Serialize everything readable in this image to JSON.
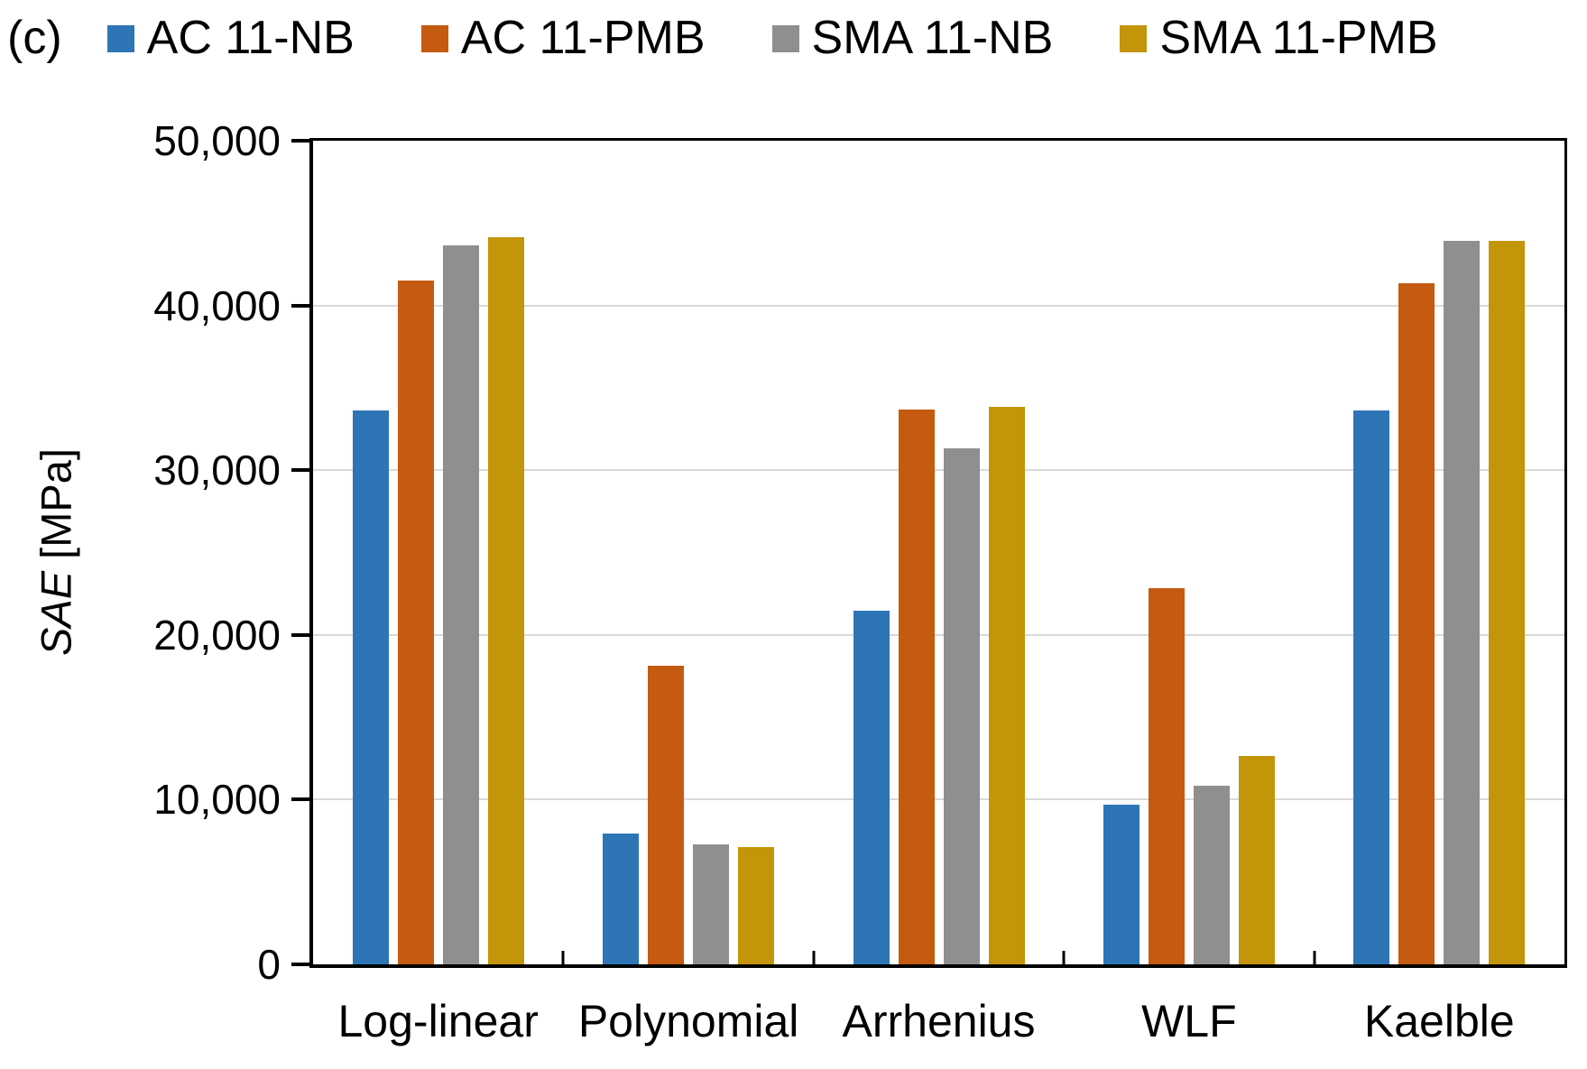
{
  "colors": {
    "series_blue": "#2E75B6",
    "series_orange": "#C55A11",
    "series_gray": "#8F8F8F",
    "series_gold": "#C39508",
    "gridline": "#D9D9D9",
    "axis": "#000000"
  },
  "chart_data": {
    "type": "bar",
    "panel_label": "(c)",
    "title": "",
    "xlabel": "",
    "ylabel": "SAE [MPa]",
    "ylabel_italic_part": "SAE",
    "ylabel_unit_part": " [MPa]",
    "categories": [
      "Log-linear",
      "Polynomial",
      "Arrhenius",
      "WLF",
      "Kaelble"
    ],
    "series": [
      {
        "name": "AC 11-NB",
        "color": "#2E75B6",
        "values": [
          33600,
          7950,
          21450,
          9700,
          33650
        ]
      },
      {
        "name": "AC 11-PMB",
        "color": "#C55A11",
        "values": [
          41500,
          18150,
          33700,
          22850,
          41350
        ]
      },
      {
        "name": "SMA 11-NB",
        "color": "#8F8F8F",
        "values": [
          43650,
          7300,
          31350,
          10850,
          43900
        ]
      },
      {
        "name": "SMA 11-PMB",
        "color": "#C39508",
        "values": [
          44150,
          7100,
          33850,
          12650,
          43900
        ]
      }
    ],
    "ylim": [
      0,
      50000
    ],
    "ytick_interval": 10000,
    "ytick_labels": [
      "0",
      "10,000",
      "20,000",
      "30,000",
      "40,000",
      "50,000"
    ],
    "grid": "horizontal",
    "legend_position": "top"
  }
}
